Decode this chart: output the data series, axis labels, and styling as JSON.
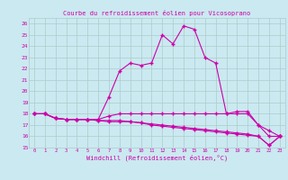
{
  "title": "Courbe du refroidissement éolien pour Vicosoprano",
  "xlabel": "Windchill (Refroidissement éolien,°C)",
  "xlim": [
    -0.5,
    23.5
  ],
  "ylim": [
    15,
    26.5
  ],
  "yticks": [
    15,
    16,
    17,
    18,
    19,
    20,
    21,
    22,
    23,
    24,
    25,
    26
  ],
  "xticks": [
    0,
    1,
    2,
    3,
    4,
    5,
    6,
    7,
    8,
    9,
    10,
    11,
    12,
    13,
    14,
    15,
    16,
    17,
    18,
    19,
    20,
    21,
    22,
    23
  ],
  "bg_color": "#cbe9f0",
  "grid_color": "#aacccc",
  "line_color": "#cc00aa",
  "lines": [
    [
      18,
      18,
      17.6,
      17.5,
      17.5,
      17.5,
      17.5,
      19.5,
      21.8,
      22.5,
      22.3,
      22.5,
      25.0,
      24.2,
      25.8,
      25.5,
      23.0,
      22.5,
      18.0,
      18.2,
      18.2,
      17.0,
      16.0,
      16.0
    ],
    [
      18,
      18,
      17.6,
      17.5,
      17.5,
      17.5,
      17.5,
      17.8,
      18.0,
      18.0,
      18.0,
      18.0,
      18.0,
      18.0,
      18.0,
      18.0,
      18.0,
      18.0,
      18.0,
      18.0,
      18.0,
      17.0,
      16.5,
      16.0
    ],
    [
      18,
      18,
      17.6,
      17.5,
      17.5,
      17.5,
      17.4,
      17.4,
      17.4,
      17.3,
      17.2,
      17.1,
      17.0,
      16.9,
      16.8,
      16.7,
      16.6,
      16.5,
      16.4,
      16.3,
      16.2,
      16.0,
      15.2,
      16.0
    ],
    [
      18,
      18,
      17.6,
      17.5,
      17.5,
      17.5,
      17.4,
      17.3,
      17.3,
      17.3,
      17.2,
      17.0,
      16.9,
      16.8,
      16.7,
      16.6,
      16.5,
      16.4,
      16.3,
      16.2,
      16.1,
      16.0,
      15.2,
      16.0
    ]
  ]
}
